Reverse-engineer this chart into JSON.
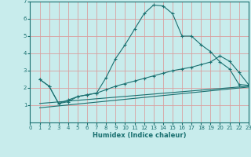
{
  "title": "",
  "xlabel": "Humidex (Indice chaleur)",
  "background_color": "#c8ecec",
  "grid_color": "#d9a0a0",
  "line_color": "#1a7070",
  "xlim": [
    0,
    23
  ],
  "ylim": [
    0,
    7
  ],
  "yticks": [
    1,
    2,
    3,
    4,
    5,
    6,
    7
  ],
  "xticks": [
    0,
    1,
    2,
    3,
    4,
    5,
    6,
    7,
    8,
    9,
    10,
    11,
    12,
    13,
    14,
    15,
    16,
    17,
    18,
    19,
    20,
    21,
    22,
    23
  ],
  "series1_x": [
    1,
    2,
    3,
    4,
    5,
    6,
    7,
    8,
    9,
    10,
    11,
    12,
    13,
    14,
    15,
    16,
    17,
    18,
    19,
    20,
    21,
    22,
    23
  ],
  "series1_y": [
    2.5,
    2.1,
    1.1,
    1.2,
    1.5,
    1.6,
    1.7,
    2.6,
    3.7,
    4.5,
    5.4,
    6.3,
    6.8,
    6.75,
    6.3,
    5.0,
    5.0,
    4.5,
    4.1,
    3.5,
    3.1,
    2.2,
    2.15
  ],
  "series2_x": [
    1,
    2,
    3,
    4,
    5,
    6,
    7,
    8,
    9,
    10,
    11,
    12,
    13,
    14,
    15,
    16,
    17,
    18,
    19,
    20,
    21,
    22,
    23
  ],
  "series2_y": [
    2.5,
    2.1,
    1.1,
    1.3,
    1.5,
    1.6,
    1.7,
    1.9,
    2.1,
    2.25,
    2.4,
    2.55,
    2.7,
    2.85,
    3.0,
    3.1,
    3.2,
    3.35,
    3.5,
    3.85,
    3.55,
    2.9,
    2.2
  ],
  "series3_x": [
    1,
    23
  ],
  "series3_y": [
    1.1,
    2.1
  ],
  "series4_x": [
    1,
    23
  ],
  "series4_y": [
    0.85,
    2.05
  ]
}
